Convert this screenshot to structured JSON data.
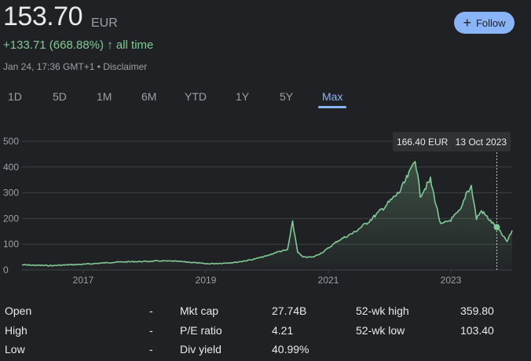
{
  "header": {
    "price": "153.70",
    "currency": "EUR",
    "change": "+133.71 (668.88%)",
    "change_arrow": "↑",
    "change_period": "all time",
    "timestamp": "Jan 24, 17:36 GMT+1 • Disclaimer",
    "follow_label": "Follow",
    "follow_icon": "plus-icon"
  },
  "range_tabs": [
    "1D",
    "5D",
    "1M",
    "6M",
    "YTD",
    "1Y",
    "5Y",
    "Max"
  ],
  "active_tab": "Max",
  "colors": {
    "line": "#81c995",
    "accent": "#8ab4f8",
    "grid": "#3c4043",
    "text_muted": "#9aa0a6"
  },
  "tooltip": {
    "value": "166.40 EUR",
    "date": "13 Oct 2023"
  },
  "chart_data": {
    "type": "area",
    "x_ticks": [
      "2017",
      "2019",
      "2021",
      "2023"
    ],
    "y_ticks": [
      0,
      100,
      200,
      300,
      400,
      500
    ],
    "ylim": [
      0,
      500
    ],
    "grid": true,
    "points": [
      [
        "2016-01",
        20
      ],
      [
        "2016-04",
        18
      ],
      [
        "2016-07",
        17
      ],
      [
        "2016-10",
        20
      ],
      [
        "2017-01",
        22
      ],
      [
        "2017-04",
        26
      ],
      [
        "2017-07",
        30
      ],
      [
        "2017-10",
        32
      ],
      [
        "2018-01",
        33
      ],
      [
        "2018-04",
        35
      ],
      [
        "2018-07",
        34
      ],
      [
        "2018-10",
        30
      ],
      [
        "2019-01",
        24
      ],
      [
        "2019-04",
        26
      ],
      [
        "2019-07",
        30
      ],
      [
        "2019-10",
        40
      ],
      [
        "2020-01",
        55
      ],
      [
        "2020-03",
        70
      ],
      [
        "2020-05",
        78
      ],
      [
        "2020-06",
        185
      ],
      [
        "2020-07",
        70
      ],
      [
        "2020-08",
        50
      ],
      [
        "2020-10",
        50
      ],
      [
        "2020-12",
        70
      ],
      [
        "2021-03",
        115
      ],
      [
        "2021-06",
        145
      ],
      [
        "2021-09",
        190
      ],
      [
        "2021-12",
        245
      ],
      [
        "2022-03",
        305
      ],
      [
        "2022-05",
        380
      ],
      [
        "2022-06",
        435
      ],
      [
        "2022-07",
        290
      ],
      [
        "2022-09",
        350
      ],
      [
        "2022-11",
        175
      ],
      [
        "2023-01",
        195
      ],
      [
        "2023-03",
        235
      ],
      [
        "2023-04",
        300
      ],
      [
        "2023-05",
        325
      ],
      [
        "2023-06",
        200
      ],
      [
        "2023-07",
        230
      ],
      [
        "2023-09",
        185
      ],
      [
        "2023-10",
        166.4
      ],
      [
        "2023-12",
        110
      ],
      [
        "2024-01",
        153.7
      ]
    ]
  },
  "stats": [
    {
      "label": "Open",
      "value": "-"
    },
    {
      "label": "High",
      "value": "-"
    },
    {
      "label": "Low",
      "value": "-"
    },
    {
      "label": "Mkt cap",
      "value": "27.74B"
    },
    {
      "label": "P/E ratio",
      "value": "4.21"
    },
    {
      "label": "Div yield",
      "value": "40.99%"
    },
    {
      "label": "52-wk high",
      "value": "359.80"
    },
    {
      "label": "52-wk low",
      "value": "103.40"
    }
  ]
}
